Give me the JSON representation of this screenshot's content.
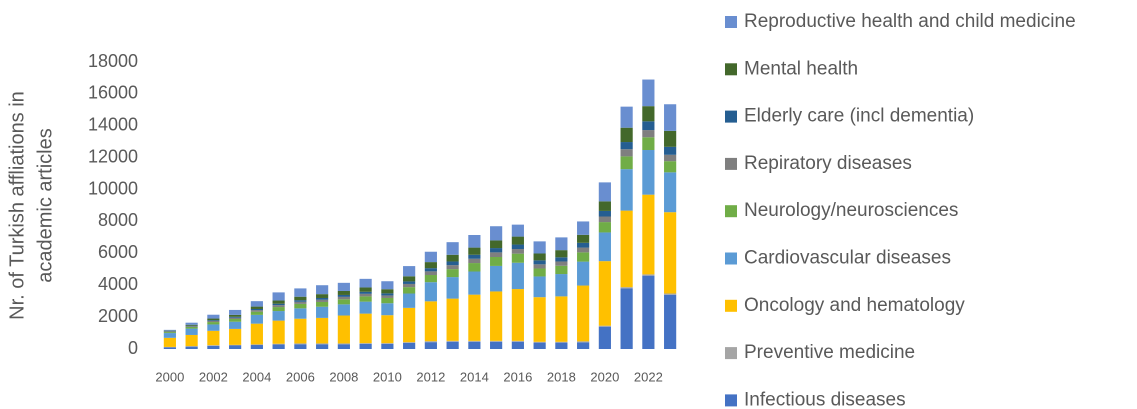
{
  "chart_data": {
    "type": "stacked_bar",
    "ylabel": [
      "Nr. of Turkish affliations in",
      "academic articles"
    ],
    "categories": [
      "2000",
      null,
      "2002",
      null,
      "2004",
      null,
      "2006",
      null,
      "2008",
      null,
      "2010",
      null,
      "2012",
      null,
      "2014",
      null,
      "2016",
      null,
      "2018",
      null,
      "2020",
      null,
      "2022",
      null
    ],
    "ylim": [
      0,
      18000
    ],
    "yticks": [
      0,
      2000,
      4000,
      6000,
      8000,
      10000,
      12000,
      14000,
      16000,
      18000
    ],
    "grid": false,
    "legend": "right",
    "series": [
      {
        "name": "Infectious diseases",
        "color": "#4472c4",
        "values": [
          100,
          150,
          200,
          220,
          250,
          280,
          300,
          300,
          300,
          320,
          320,
          380,
          430,
          450,
          450,
          450,
          450,
          400,
          400,
          420,
          1400,
          3800,
          4600,
          3400
        ]
      },
      {
        "name": "Preventive medicine",
        "color": "#a5a5a5",
        "values": [
          30,
          30,
          40,
          40,
          40,
          50,
          50,
          50,
          50,
          50,
          50,
          50,
          60,
          60,
          60,
          60,
          60,
          50,
          50,
          60,
          60,
          80,
          80,
          80
        ]
      },
      {
        "name": "Oncology and hematology",
        "color": "#ffc000",
        "values": [
          570,
          700,
          900,
          1000,
          1300,
          1450,
          1550,
          1600,
          1750,
          1850,
          1750,
          2150,
          2500,
          2650,
          2900,
          3100,
          3250,
          2800,
          2850,
          3500,
          4050,
          4800,
          5000,
          5100
        ]
      },
      {
        "name": "Cardiovascular diseases",
        "color": "#5b9bd5",
        "values": [
          300,
          400,
          400,
          450,
          550,
          600,
          650,
          700,
          700,
          750,
          750,
          900,
          1200,
          1350,
          1450,
          1600,
          1650,
          1300,
          1400,
          1500,
          1800,
          2600,
          2800,
          2500
        ]
      },
      {
        "name": "Neurology/neurosciences",
        "color": "#70ad47",
        "values": [
          60,
          100,
          150,
          170,
          200,
          250,
          280,
          300,
          320,
          330,
          330,
          400,
          450,
          500,
          530,
          560,
          570,
          500,
          520,
          580,
          650,
          800,
          800,
          700
        ]
      },
      {
        "name": "Repiratory diseases",
        "color": "#7f7f7f",
        "values": [
          30,
          50,
          70,
          80,
          100,
          120,
          130,
          140,
          150,
          160,
          160,
          200,
          230,
          250,
          270,
          290,
          290,
          260,
          270,
          300,
          350,
          450,
          450,
          400
        ]
      },
      {
        "name": "Elderly care (incl dementia)",
        "color": "#255e91",
        "values": [
          20,
          30,
          50,
          60,
          70,
          90,
          100,
          110,
          120,
          130,
          130,
          160,
          200,
          230,
          250,
          270,
          280,
          250,
          260,
          300,
          350,
          450,
          550,
          500
        ]
      },
      {
        "name": "Mental health",
        "color": "#43682b",
        "values": [
          40,
          60,
          100,
          120,
          150,
          200,
          220,
          240,
          250,
          270,
          260,
          320,
          380,
          420,
          450,
          480,
          500,
          430,
          450,
          500,
          600,
          900,
          950,
          1000
        ]
      },
      {
        "name": "Reproductive health and child medicine",
        "color": "#698ed0",
        "values": [
          50,
          130,
          240,
          310,
          340,
          510,
          520,
          560,
          510,
          540,
          500,
          640,
          650,
          790,
          790,
          890,
          750,
          760,
          800,
          840,
          1190,
          1320,
          1670,
          1670
        ]
      }
    ]
  }
}
